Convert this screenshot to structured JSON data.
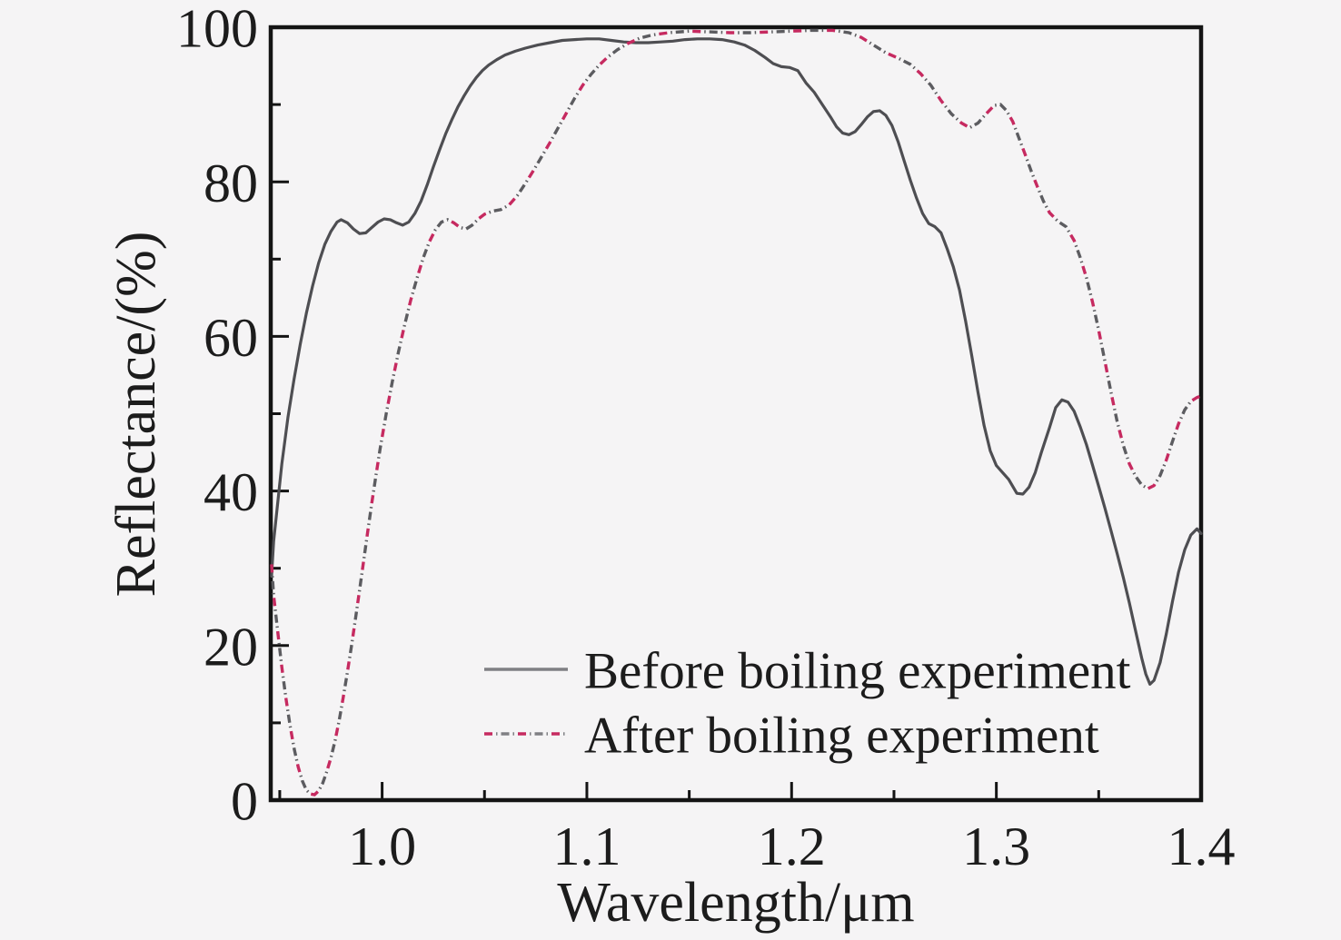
{
  "figure": {
    "kind": "spectral reflectance line chart"
  },
  "colors": {
    "background": "#f5f4f5",
    "frame": "#141414",
    "text": "#1c1c1c",
    "before_line": "#4e4e52",
    "after_dash_red": "#c62a60",
    "after_dash_gray": "#5c5c60",
    "legend_sample_gray": "#7f7f83"
  },
  "chart_data": {
    "type": "line",
    "title": "",
    "xlabel": "Wavelength/μm",
    "ylabel": "Reflectance/(%)",
    "xlim": [
      0.9456,
      1.4
    ],
    "ylim": [
      0,
      100
    ],
    "grid": false,
    "legend_position": "inside-bottom-center",
    "x_ticks_major": [
      1.0,
      1.1,
      1.2,
      1.3,
      1.4
    ],
    "x_tick_labels": [
      "1.0",
      "1.1",
      "1.2",
      "1.3",
      "1.4"
    ],
    "x_ticks_minor": [
      0.95,
      1.05,
      1.15,
      1.25,
      1.35
    ],
    "y_ticks_major": [
      0,
      20,
      40,
      60,
      80,
      100
    ],
    "y_tick_labels": [
      "0",
      "20",
      "40",
      "60",
      "80",
      "100"
    ],
    "y_ticks_minor": [
      10,
      30,
      50,
      70,
      90
    ],
    "series": [
      {
        "name": "Before boiling experiment",
        "style": "solid",
        "color": "#4e4e52",
        "points": [
          [
            0.946,
            29.0
          ],
          [
            0.947,
            33.5
          ],
          [
            0.949,
            38.5
          ],
          [
            0.951,
            43.5
          ],
          [
            0.954,
            49.5
          ],
          [
            0.957,
            54.5
          ],
          [
            0.96,
            59.0
          ],
          [
            0.963,
            63.0
          ],
          [
            0.966,
            66.5
          ],
          [
            0.969,
            69.5
          ],
          [
            0.972,
            71.9
          ],
          [
            0.975,
            73.6
          ],
          [
            0.978,
            74.8
          ],
          [
            0.98,
            75.1
          ],
          [
            0.983,
            74.7
          ],
          [
            0.986,
            73.9
          ],
          [
            0.989,
            73.3
          ],
          [
            0.992,
            73.4
          ],
          [
            0.995,
            74.1
          ],
          [
            0.998,
            74.8
          ],
          [
            1.001,
            75.2
          ],
          [
            1.004,
            75.1
          ],
          [
            1.007,
            74.7
          ],
          [
            1.01,
            74.4
          ],
          [
            1.013,
            74.8
          ],
          [
            1.016,
            75.9
          ],
          [
            1.019,
            77.5
          ],
          [
            1.022,
            79.6
          ],
          [
            1.025,
            81.9
          ],
          [
            1.028,
            84.1
          ],
          [
            1.031,
            86.2
          ],
          [
            1.034,
            88.0
          ],
          [
            1.037,
            89.7
          ],
          [
            1.04,
            91.1
          ],
          [
            1.043,
            92.4
          ],
          [
            1.046,
            93.5
          ],
          [
            1.049,
            94.4
          ],
          [
            1.052,
            95.1
          ],
          [
            1.056,
            95.8
          ],
          [
            1.06,
            96.4
          ],
          [
            1.065,
            96.9
          ],
          [
            1.07,
            97.3
          ],
          [
            1.076,
            97.7
          ],
          [
            1.082,
            98.0
          ],
          [
            1.088,
            98.3
          ],
          [
            1.094,
            98.4
          ],
          [
            1.1,
            98.5
          ],
          [
            1.106,
            98.5
          ],
          [
            1.112,
            98.3
          ],
          [
            1.118,
            98.1
          ],
          [
            1.124,
            98.0
          ],
          [
            1.13,
            98.0
          ],
          [
            1.136,
            98.1
          ],
          [
            1.142,
            98.2
          ],
          [
            1.148,
            98.4
          ],
          [
            1.154,
            98.5
          ],
          [
            1.16,
            98.5
          ],
          [
            1.166,
            98.4
          ],
          [
            1.172,
            98.1
          ],
          [
            1.177,
            97.7
          ],
          [
            1.182,
            97.0
          ],
          [
            1.187,
            96.1
          ],
          [
            1.191,
            95.3
          ],
          [
            1.195,
            94.9
          ],
          [
            1.199,
            94.8
          ],
          [
            1.203,
            94.4
          ],
          [
            1.207,
            92.8
          ],
          [
            1.211,
            91.6
          ],
          [
            1.215,
            90.0
          ],
          [
            1.219,
            88.4
          ],
          [
            1.222,
            87.1
          ],
          [
            1.225,
            86.3
          ],
          [
            1.228,
            86.1
          ],
          [
            1.231,
            86.5
          ],
          [
            1.234,
            87.4
          ],
          [
            1.237,
            88.4
          ],
          [
            1.24,
            89.1
          ],
          [
            1.243,
            89.2
          ],
          [
            1.246,
            88.6
          ],
          [
            1.249,
            87.3
          ],
          [
            1.252,
            85.2
          ],
          [
            1.255,
            82.7
          ],
          [
            1.258,
            80.2
          ],
          [
            1.261,
            77.9
          ],
          [
            1.264,
            75.9
          ],
          [
            1.267,
            74.6
          ],
          [
            1.27,
            74.2
          ],
          [
            1.273,
            73.4
          ],
          [
            1.276,
            71.3
          ],
          [
            1.279,
            69.0
          ],
          [
            1.282,
            66.0
          ],
          [
            1.285,
            62.0
          ],
          [
            1.288,
            57.5
          ],
          [
            1.291,
            52.8
          ],
          [
            1.294,
            48.5
          ],
          [
            1.297,
            45.2
          ],
          [
            1.3,
            43.3
          ],
          [
            1.303,
            42.4
          ],
          [
            1.306,
            41.5
          ],
          [
            1.31,
            39.7
          ],
          [
            1.313,
            39.6
          ],
          [
            1.316,
            40.5
          ],
          [
            1.319,
            42.4
          ],
          [
            1.322,
            45.0
          ],
          [
            1.326,
            48.2
          ],
          [
            1.329,
            50.8
          ],
          [
            1.332,
            51.8
          ],
          [
            1.335,
            51.5
          ],
          [
            1.338,
            50.3
          ],
          [
            1.341,
            48.3
          ],
          [
            1.344,
            46.0
          ],
          [
            1.347,
            43.3
          ],
          [
            1.35,
            40.6
          ],
          [
            1.353,
            37.8
          ],
          [
            1.356,
            34.9
          ],
          [
            1.359,
            31.9
          ],
          [
            1.362,
            28.8
          ],
          [
            1.365,
            25.5
          ],
          [
            1.368,
            21.9
          ],
          [
            1.371,
            18.4
          ],
          [
            1.373,
            16.3
          ],
          [
            1.375,
            15.0
          ],
          [
            1.377,
            15.5
          ],
          [
            1.38,
            17.8
          ],
          [
            1.383,
            21.5
          ],
          [
            1.386,
            25.7
          ],
          [
            1.389,
            29.5
          ],
          [
            1.392,
            32.4
          ],
          [
            1.395,
            34.3
          ],
          [
            1.398,
            35.1
          ],
          [
            1.4,
            34.5
          ]
        ]
      },
      {
        "name": "After boiling experiment",
        "style": "dash-dot-two-tone",
        "color": "#c62a60",
        "color2": "#5c5c60",
        "points": [
          [
            0.946,
            30.5
          ],
          [
            0.947,
            26.5
          ],
          [
            0.949,
            21.8
          ],
          [
            0.951,
            17.2
          ],
          [
            0.953,
            13.2
          ],
          [
            0.955,
            9.7
          ],
          [
            0.957,
            6.7
          ],
          [
            0.959,
            4.3
          ],
          [
            0.961,
            2.5
          ],
          [
            0.963,
            1.3
          ],
          [
            0.965,
            0.8
          ],
          [
            0.967,
            0.7
          ],
          [
            0.969,
            1.2
          ],
          [
            0.971,
            2.2
          ],
          [
            0.973,
            3.7
          ],
          [
            0.975,
            5.5
          ],
          [
            0.977,
            7.7
          ],
          [
            0.979,
            10.3
          ],
          [
            0.981,
            13.3
          ],
          [
            0.983,
            16.5
          ],
          [
            0.985,
            19.9
          ],
          [
            0.987,
            23.5
          ],
          [
            0.989,
            27.2
          ],
          [
            0.991,
            31.0
          ],
          [
            0.993,
            34.8
          ],
          [
            0.995,
            38.5
          ],
          [
            0.997,
            42.0
          ],
          [
            0.999,
            45.4
          ],
          [
            1.002,
            50.0
          ],
          [
            1.005,
            54.2
          ],
          [
            1.008,
            58.0
          ],
          [
            1.011,
            61.5
          ],
          [
            1.014,
            64.7
          ],
          [
            1.017,
            67.5
          ],
          [
            1.02,
            70.1
          ],
          [
            1.023,
            72.2
          ],
          [
            1.026,
            73.8
          ],
          [
            1.029,
            74.8
          ],
          [
            1.032,
            75.1
          ],
          [
            1.035,
            74.7
          ],
          [
            1.038,
            74.1
          ],
          [
            1.041,
            73.9
          ],
          [
            1.044,
            74.4
          ],
          [
            1.047,
            75.2
          ],
          [
            1.05,
            75.8
          ],
          [
            1.054,
            76.2
          ],
          [
            1.058,
            76.4
          ],
          [
            1.062,
            77.0
          ],
          [
            1.066,
            78.2
          ],
          [
            1.07,
            79.8
          ],
          [
            1.074,
            81.5
          ],
          [
            1.078,
            83.3
          ],
          [
            1.082,
            85.1
          ],
          [
            1.086,
            87.0
          ],
          [
            1.09,
            88.9
          ],
          [
            1.094,
            90.8
          ],
          [
            1.098,
            92.5
          ],
          [
            1.102,
            93.9
          ],
          [
            1.106,
            95.1
          ],
          [
            1.11,
            96.1
          ],
          [
            1.115,
            97.1
          ],
          [
            1.12,
            97.9
          ],
          [
            1.126,
            98.6
          ],
          [
            1.132,
            99.0
          ],
          [
            1.14,
            99.3
          ],
          [
            1.15,
            99.5
          ],
          [
            1.16,
            99.4
          ],
          [
            1.17,
            99.3
          ],
          [
            1.18,
            99.3
          ],
          [
            1.19,
            99.4
          ],
          [
            1.2,
            99.5
          ],
          [
            1.21,
            99.6
          ],
          [
            1.22,
            99.6
          ],
          [
            1.228,
            99.3
          ],
          [
            1.234,
            98.7
          ],
          [
            1.24,
            97.7
          ],
          [
            1.246,
            96.7
          ],
          [
            1.252,
            96.0
          ],
          [
            1.258,
            95.2
          ],
          [
            1.263,
            94.0
          ],
          [
            1.268,
            92.5
          ],
          [
            1.273,
            90.5
          ],
          [
            1.278,
            88.8
          ],
          [
            1.283,
            87.6
          ],
          [
            1.287,
            87.0
          ],
          [
            1.291,
            87.6
          ],
          [
            1.295,
            88.8
          ],
          [
            1.299,
            89.9
          ],
          [
            1.302,
            90.0
          ],
          [
            1.305,
            89.2
          ],
          [
            1.308,
            87.8
          ],
          [
            1.311,
            85.7
          ],
          [
            1.314,
            83.6
          ],
          [
            1.317,
            81.4
          ],
          [
            1.32,
            79.4
          ],
          [
            1.323,
            77.5
          ],
          [
            1.326,
            76.0
          ],
          [
            1.33,
            74.9
          ],
          [
            1.334,
            74.2
          ],
          [
            1.338,
            72.4
          ],
          [
            1.341,
            70.2
          ],
          [
            1.344,
            67.6
          ],
          [
            1.347,
            64.4
          ],
          [
            1.35,
            60.8
          ],
          [
            1.353,
            56.8
          ],
          [
            1.356,
            52.8
          ],
          [
            1.359,
            49.0
          ],
          [
            1.362,
            45.9
          ],
          [
            1.365,
            43.5
          ],
          [
            1.368,
            41.9
          ],
          [
            1.371,
            40.8
          ],
          [
            1.374,
            40.3
          ],
          [
            1.377,
            40.7
          ],
          [
            1.38,
            42.0
          ],
          [
            1.383,
            44.0
          ],
          [
            1.386,
            46.4
          ],
          [
            1.389,
            48.7
          ],
          [
            1.392,
            50.5
          ],
          [
            1.395,
            51.6
          ],
          [
            1.398,
            52.1
          ],
          [
            1.4,
            52.3
          ]
        ]
      }
    ]
  },
  "legend": {
    "items": [
      {
        "label": "Before boiling experiment",
        "sample": "solid-line"
      },
      {
        "label": "After boiling experiment",
        "sample": "dash-dot-line"
      }
    ]
  }
}
